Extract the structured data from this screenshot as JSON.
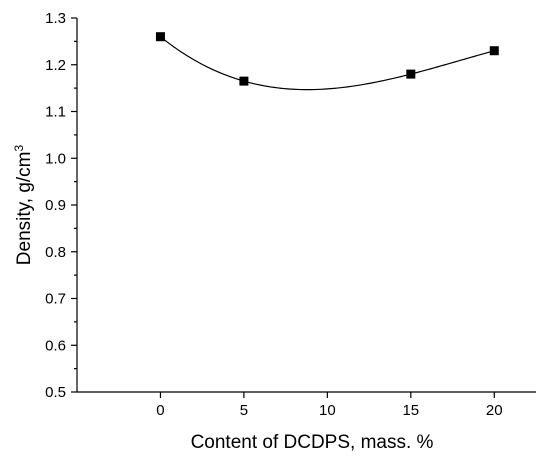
{
  "chart_data": {
    "type": "line",
    "xlabel": "Content of DCDPS, mass. %",
    "ylabel_main": "Density, g/cm",
    "ylabel_sup": "3",
    "xlim": [
      -5,
      22.5
    ],
    "ylim": [
      0.5,
      1.3
    ],
    "x_ticks": [
      0,
      5,
      10,
      15,
      20
    ],
    "y_ticks": [
      0.5,
      0.6,
      0.7,
      0.8,
      0.9,
      1.0,
      1.1,
      1.2,
      1.3
    ],
    "y_tick_labels": [
      "0.5",
      "0.6",
      "0.7",
      "0.8",
      "0.9",
      "1.0",
      "1.1",
      "1.2",
      "1.3"
    ],
    "grid": false,
    "series": [
      {
        "x": [
          0,
          5,
          15,
          20
        ],
        "values": [
          1.26,
          1.165,
          1.18,
          1.23
        ],
        "marker": "square",
        "color": "#000000",
        "smooth_fit": true
      }
    ]
  }
}
